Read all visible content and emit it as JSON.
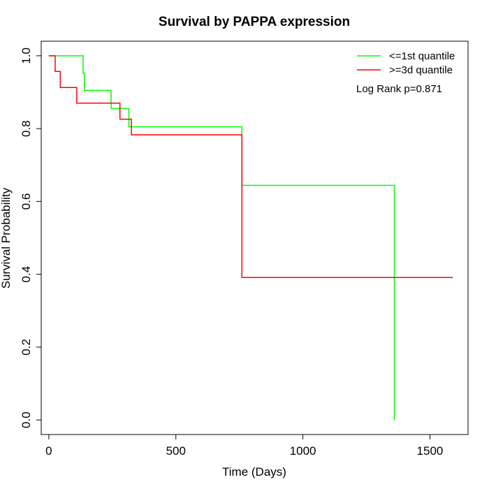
{
  "chart_data": {
    "type": "line",
    "title": "Survival by PAPPA expression",
    "xlabel": "Time (Days)",
    "ylabel": "Survival Probability",
    "xlim": [
      -30,
      1650
    ],
    "ylim": [
      -0.04,
      1.04
    ],
    "x_ticks": [
      0,
      500,
      1000,
      1500
    ],
    "x_tick_labels": [
      "0",
      "500",
      "1000",
      "1500"
    ],
    "y_ticks": [
      0.0,
      0.2,
      0.4,
      0.6,
      0.8,
      1.0
    ],
    "y_tick_labels": [
      "0.0",
      "0.2",
      "0.4",
      "0.6",
      "0.8",
      "1.0"
    ],
    "grid": false,
    "legend_position": "top-right",
    "series": [
      {
        "name": "<=1st quantile",
        "color": "#00ff00",
        "step": true,
        "points": [
          [
            0,
            1.0
          ],
          [
            135,
            1.0
          ],
          [
            135,
            0.952
          ],
          [
            140,
            0.952
          ],
          [
            140,
            0.905
          ],
          [
            245,
            0.905
          ],
          [
            245,
            0.855
          ],
          [
            315,
            0.855
          ],
          [
            315,
            0.805
          ],
          [
            760,
            0.805
          ],
          [
            760,
            0.644
          ],
          [
            1360,
            0.644
          ],
          [
            1360,
            0.0
          ]
        ]
      },
      {
        "name": ">=3d quantile",
        "color": "#ff0000",
        "step": true,
        "points": [
          [
            0,
            1.0
          ],
          [
            25,
            1.0
          ],
          [
            25,
            0.957
          ],
          [
            45,
            0.957
          ],
          [
            45,
            0.913
          ],
          [
            110,
            0.913
          ],
          [
            110,
            0.87
          ],
          [
            280,
            0.87
          ],
          [
            280,
            0.826
          ],
          [
            325,
            0.826
          ],
          [
            325,
            0.783
          ],
          [
            760,
            0.783
          ],
          [
            760,
            0.391
          ],
          [
            1590,
            0.391
          ]
        ]
      }
    ],
    "annotations": [
      "Log Rank p=0.871"
    ]
  }
}
